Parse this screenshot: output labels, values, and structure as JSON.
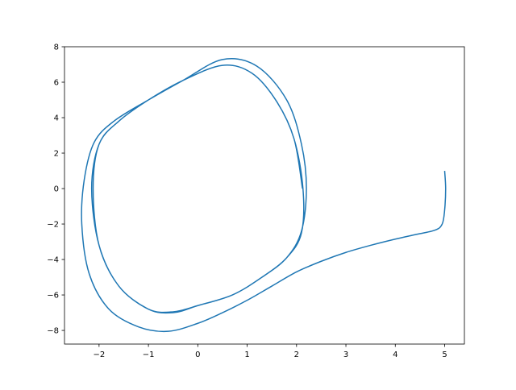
{
  "chart_data": {
    "type": "line",
    "title": "",
    "xlabel": "",
    "ylabel": "",
    "xlim": [
      -2.7,
      5.4
    ],
    "ylim": [
      -8.77,
      8
    ],
    "xticks": [
      "−2",
      "−1",
      "0",
      "1",
      "2",
      "3",
      "4",
      "5"
    ],
    "xtick_values": [
      -2,
      -1,
      0,
      1,
      2,
      3,
      4,
      5
    ],
    "yticks": [
      "−8",
      "−6",
      "−4",
      "−2",
      "0",
      "2",
      "4",
      "6",
      "8"
    ],
    "ytick_values": [
      -8,
      -6,
      -4,
      -2,
      0,
      2,
      4,
      6,
      8
    ],
    "grid": false,
    "color": "#1f77b4",
    "series": [
      {
        "x": [
          5.0,
          5.02,
          5.0,
          4.95,
          4.8,
          4.4,
          4.0,
          3.5,
          3.0,
          2.5,
          2.0,
          1.5,
          1.0,
          0.5,
          0.0,
          -0.6,
          -1.2,
          -1.8,
          -2.2,
          -2.35,
          -2.3,
          -2.1,
          -1.7,
          -1.0,
          -0.3,
          0.5,
          1.2,
          1.8,
          2.1,
          2.2,
          2.1,
          1.8,
          1.3,
          0.7,
          0.0,
          -0.5,
          -1.0,
          -1.6,
          -2.0,
          -2.15,
          -2.0,
          -1.6,
          -1.0,
          -0.3,
          0.5,
          1.1,
          1.6,
          1.95,
          2.13,
          2.1,
          1.8,
          1.3,
          0.7,
          0.0,
          -0.5,
          -1.0,
          -1.6,
          -2.0,
          -2.12,
          -2.0,
          -1.6,
          -1.0,
          -0.3,
          0.5,
          1.1,
          1.6,
          1.95,
          2.12
        ],
        "y": [
          1.0,
          0.0,
          -1.2,
          -2.0,
          -2.35,
          -2.6,
          -2.85,
          -3.2,
          -3.6,
          -4.1,
          -4.7,
          -5.5,
          -6.3,
          -7.0,
          -7.6,
          -8.05,
          -7.8,
          -6.8,
          -4.8,
          -2.0,
          0.5,
          2.6,
          3.8,
          5.0,
          6.1,
          7.28,
          6.9,
          5.0,
          2.5,
          0.0,
          -2.4,
          -3.9,
          -5.0,
          -6.0,
          -6.6,
          -7.0,
          -6.8,
          -5.5,
          -3.2,
          0.0,
          2.5,
          3.8,
          5.0,
          6.1,
          6.95,
          6.5,
          4.9,
          2.8,
          0.0,
          -2.5,
          -3.9,
          -5.0,
          -6.0,
          -6.6,
          -6.95,
          -6.8,
          -5.5,
          -3.2,
          0.0,
          2.5,
          3.8,
          5.0,
          6.1,
          6.95,
          6.5,
          4.9,
          2.8,
          0.0
        ]
      }
    ]
  }
}
